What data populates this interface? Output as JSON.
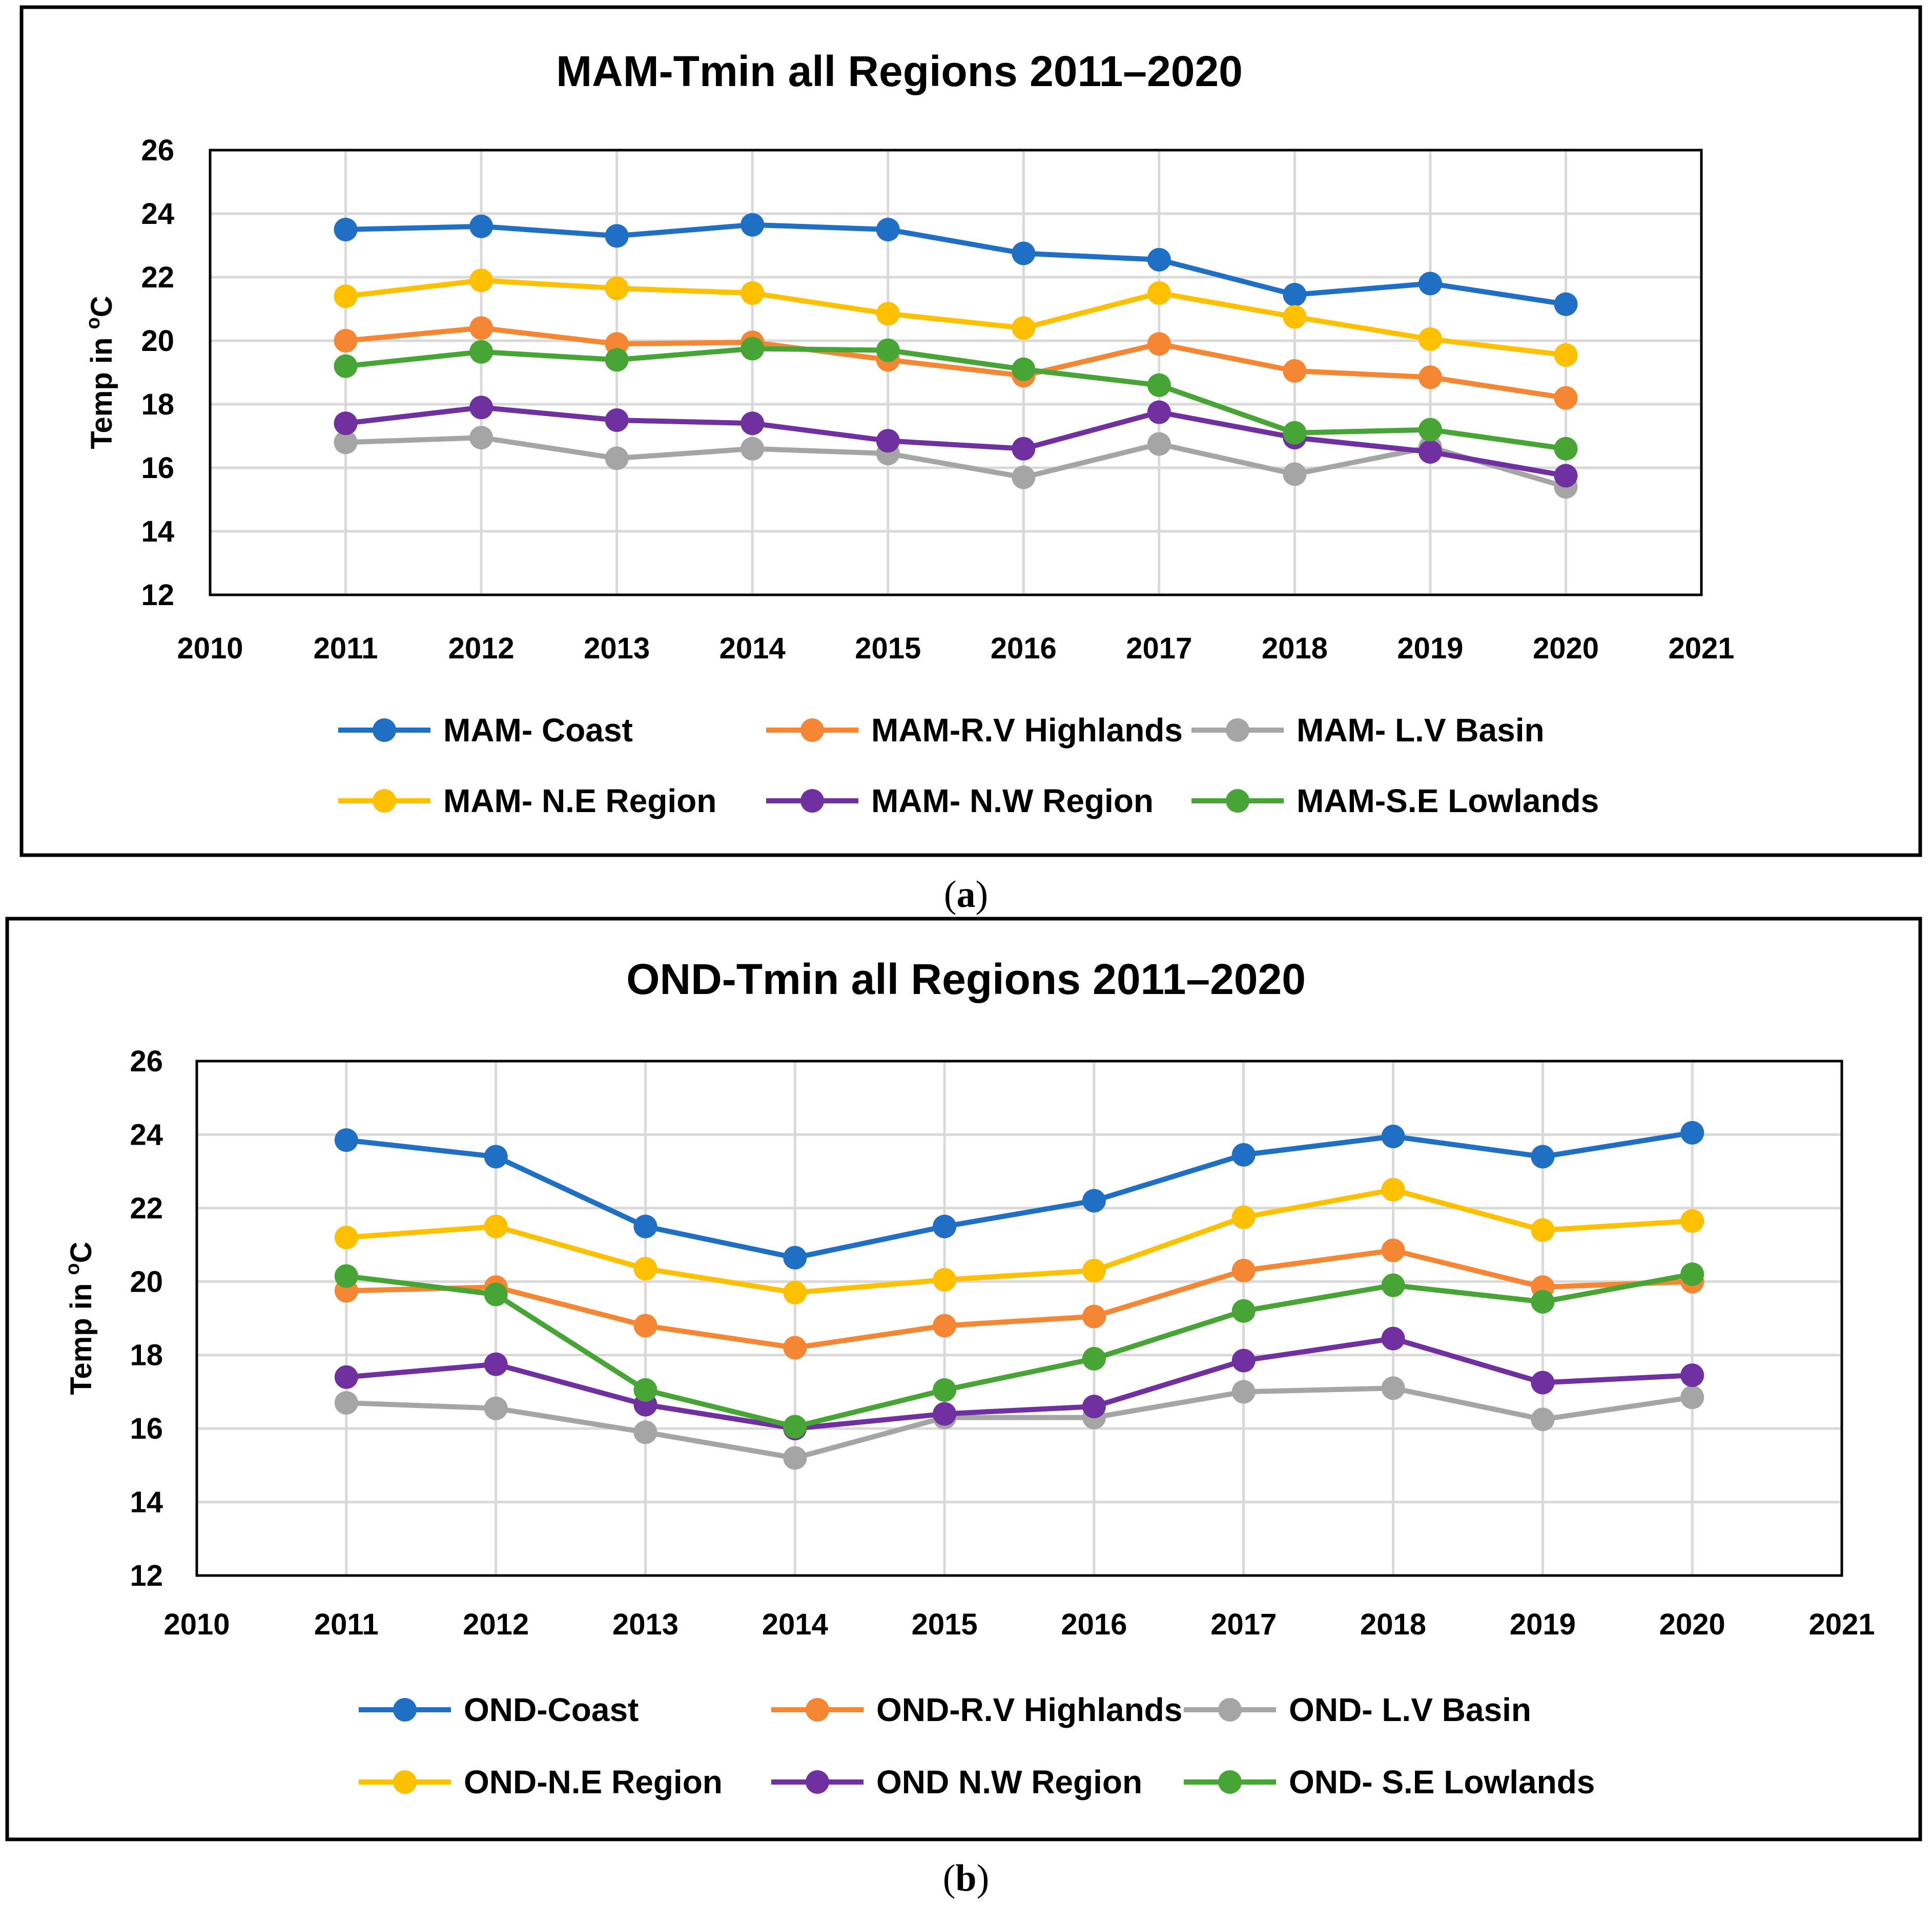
{
  "chart_data": [
    {
      "type": "line",
      "title": "MAM-Tmin all Regions 2011–2020",
      "panel_label": "a",
      "xlabel": "",
      "ylabel": "Temp in ºC",
      "ylabel_parts": [
        "Temp in ",
        "o",
        "C"
      ],
      "xlim": [
        2010,
        2021
      ],
      "ylim": [
        12,
        26
      ],
      "xticks": [
        "2010",
        "2011",
        "2012",
        "2013",
        "2014",
        "2015",
        "2016",
        "2017",
        "2018",
        "2019",
        "2020",
        "2021"
      ],
      "yticks": [
        "12",
        "14",
        "16",
        "18",
        "20",
        "22",
        "24",
        "26"
      ],
      "grid": true,
      "legend_position": "bottom",
      "x": [
        2011,
        2012,
        2013,
        2014,
        2015,
        2016,
        2017,
        2018,
        2019,
        2020
      ],
      "series": [
        {
          "name": "MAM- Coast",
          "color": "#1f6fc5",
          "values": [
            23.5,
            23.6,
            23.3,
            23.65,
            23.5,
            22.75,
            22.55,
            21.45,
            21.8,
            21.15
          ]
        },
        {
          "name": "MAM-R.V Highlands",
          "color": "#f58634",
          "values": [
            20.0,
            20.4,
            19.9,
            19.95,
            19.4,
            18.9,
            19.9,
            19.05,
            18.85,
            18.2
          ]
        },
        {
          "name": "MAM- L.V Basin",
          "color": "#a5a5a5",
          "values": [
            16.8,
            16.95,
            16.3,
            16.6,
            16.45,
            15.7,
            16.75,
            15.8,
            16.65,
            15.4
          ]
        },
        {
          "name": "MAM- N.E Region",
          "color": "#ffc000",
          "values": [
            21.4,
            21.9,
            21.65,
            21.5,
            20.85,
            20.4,
            21.5,
            20.75,
            20.05,
            19.55
          ]
        },
        {
          "name": "MAM- N.W Region",
          "color": "#7030a0",
          "values": [
            17.4,
            17.9,
            17.5,
            17.4,
            16.85,
            16.6,
            17.75,
            16.95,
            16.5,
            15.75
          ]
        },
        {
          "name": "MAM-S.E Lowlands",
          "color": "#46a535",
          "values": [
            19.2,
            19.65,
            19.4,
            19.75,
            19.7,
            19.1,
            18.6,
            17.1,
            17.2,
            16.6
          ]
        }
      ]
    },
    {
      "type": "line",
      "title": "OND-Tmin all Regions 2011–2020",
      "panel_label": "b",
      "xlabel": "",
      "ylabel": "Temp in ºC",
      "ylabel_parts": [
        "Temp in ",
        "o",
        "C"
      ],
      "xlim": [
        2010,
        2021
      ],
      "ylim": [
        12,
        26
      ],
      "xticks": [
        "2010",
        "2011",
        "2012",
        "2013",
        "2014",
        "2015",
        "2016",
        "2017",
        "2018",
        "2019",
        "2020",
        "2021"
      ],
      "yticks": [
        "12",
        "14",
        "16",
        "18",
        "20",
        "22",
        "24",
        "26"
      ],
      "grid": true,
      "legend_position": "bottom",
      "x": [
        2011,
        2012,
        2013,
        2014,
        2015,
        2016,
        2017,
        2018,
        2019,
        2020
      ],
      "series": [
        {
          "name": "OND-Coast",
          "color": "#1f6fc5",
          "values": [
            23.85,
            23.4,
            21.5,
            20.65,
            21.5,
            22.2,
            23.45,
            23.95,
            23.4,
            24.05
          ]
        },
        {
          "name": "OND-R.V Highlands",
          "color": "#f58634",
          "values": [
            19.75,
            19.85,
            18.8,
            18.2,
            18.8,
            19.05,
            20.3,
            20.85,
            19.85,
            20.0
          ]
        },
        {
          "name": "OND- L.V Basin",
          "color": "#a5a5a5",
          "values": [
            16.7,
            16.55,
            15.9,
            15.2,
            16.3,
            16.3,
            17.0,
            17.1,
            16.25,
            16.85
          ]
        },
        {
          "name": "OND-N.E Region",
          "color": "#ffc000",
          "values": [
            21.2,
            21.5,
            20.35,
            19.7,
            20.05,
            20.3,
            21.75,
            22.5,
            21.4,
            21.65
          ]
        },
        {
          "name": "OND N.W Region",
          "color": "#7030a0",
          "values": [
            17.4,
            17.75,
            16.65,
            16.0,
            16.4,
            16.6,
            17.85,
            18.45,
            17.25,
            17.45
          ]
        },
        {
          "name": "OND- S.E Lowlands",
          "color": "#46a535",
          "values": [
            20.15,
            19.65,
            17.05,
            16.05,
            17.05,
            17.9,
            19.2,
            19.9,
            19.45,
            20.2
          ]
        }
      ]
    }
  ]
}
